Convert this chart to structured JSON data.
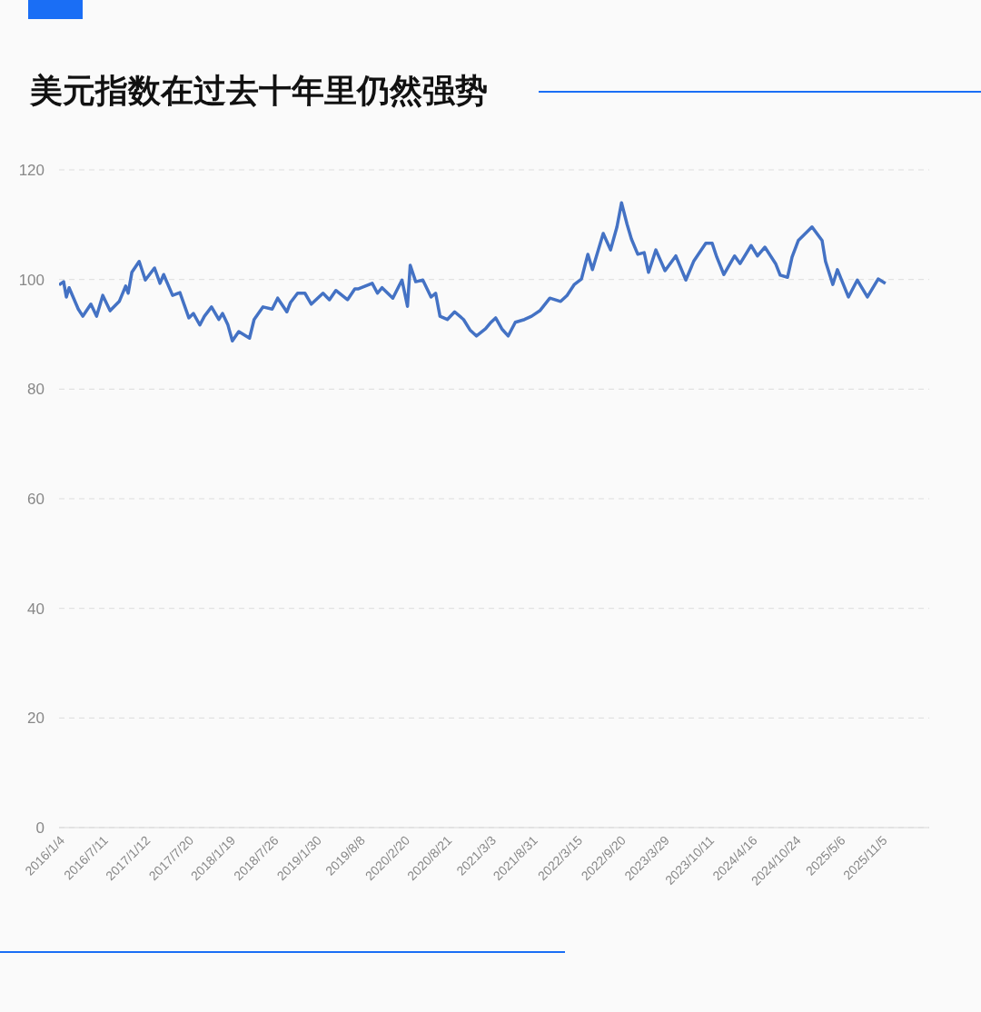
{
  "chart_data": {
    "type": "line",
    "title": "美元指数在过去十年里仍然强势",
    "x": [
      "2016-01-04",
      "2016-01-24",
      "2016-02-05",
      "2016-02-17",
      "2016-03-28",
      "2016-04-17",
      "2016-05-22",
      "2016-06-16",
      "2016-07-13",
      "2016-08-14",
      "2016-09-23",
      "2016-10-21",
      "2016-11-01",
      "2016-11-17",
      "2016-12-19",
      "2017-01-15",
      "2017-02-24",
      "2017-03-20",
      "2017-04-05",
      "2017-05-14",
      "2017-06-15",
      "2017-07-24",
      "2017-08-13",
      "2017-09-10",
      "2017-09-30",
      "2017-10-31",
      "2017-12-02",
      "2017-12-18",
      "2018-01-10",
      "2018-01-30",
      "2018-02-27",
      "2018-04-15",
      "2018-05-05",
      "2018-06-13",
      "2018-07-23",
      "2018-08-16",
      "2018-09-25",
      "2018-10-11",
      "2018-11-11",
      "2018-12-13",
      "2019-01-10",
      "2019-03-02",
      "2019-03-30",
      "2019-04-27",
      "2019-06-17",
      "2019-07-19",
      "2019-08-04",
      "2019-10-03",
      "2019-10-26",
      "2019-11-15",
      "2020-01-01",
      "2020-02-10",
      "2020-03-05",
      "2020-03-17",
      "2020-04-10",
      "2020-05-11",
      "2020-06-16",
      "2020-07-06",
      "2020-07-25",
      "2020-08-26",
      "2020-09-27",
      "2020-11-05",
      "2020-12-03",
      "2020-12-31",
      "2021-02-09",
      "2021-03-05",
      "2021-03-25",
      "2021-04-21",
      "2021-05-19",
      "2021-06-19",
      "2021-07-29",
      "2021-08-29",
      "2021-10-04",
      "2021-11-17",
      "2022-01-03",
      "2022-01-31",
      "2022-03-04",
      "2022-04-04",
      "2022-05-02",
      "2022-05-22",
      "2022-07-08",
      "2022-08-09",
      "2022-09-06",
      "2022-09-26",
      "2022-10-20",
      "2022-11-08",
      "2022-12-06",
      "2023-01-03",
      "2023-01-22",
      "2023-02-23",
      "2023-04-04",
      "2023-05-21",
      "2023-07-04",
      "2023-08-08",
      "2023-09-29",
      "2023-10-27",
      "2023-11-16",
      "2023-12-17",
      "2024-02-02",
      "2024-02-26",
      "2024-04-14",
      "2024-05-12",
      "2024-06-13",
      "2024-07-30",
      "2024-08-19",
      "2024-09-20",
      "2024-10-10",
      "2024-11-06",
      "2025-01-05",
      "2025-02-18",
      "2025-03-05",
      "2025-04-06",
      "2025-04-26",
      "2025-06-13",
      "2025-07-22",
      "2025-09-04",
      "2025-10-21",
      "2025-11-22"
    ],
    "series": [
      {
        "color": "#4472c4",
        "values": [
          99.0,
          99.6,
          96.8,
          98.5,
          94.6,
          93.3,
          95.5,
          93.3,
          97.1,
          94.3,
          96.0,
          98.8,
          97.5,
          101.3,
          103.3,
          99.9,
          102.1,
          99.3,
          100.9,
          97.1,
          97.6,
          93.0,
          93.8,
          91.7,
          93.3,
          95.0,
          92.7,
          93.8,
          91.8,
          88.8,
          90.5,
          89.3,
          92.7,
          95.0,
          94.6,
          96.6,
          94.1,
          95.8,
          97.5,
          97.5,
          95.5,
          97.5,
          96.3,
          98.0,
          96.3,
          98.3,
          98.3,
          99.3,
          97.5,
          98.5,
          96.6,
          99.9,
          95.1,
          102.6,
          99.6,
          99.9,
          96.8,
          97.5,
          93.3,
          92.7,
          94.1,
          92.7,
          90.8,
          89.7,
          91.0,
          92.2,
          93.0,
          91.0,
          89.7,
          92.2,
          92.7,
          93.3,
          94.3,
          96.6,
          96.0,
          97.1,
          99.1,
          100.1,
          104.6,
          101.8,
          108.4,
          105.4,
          109.6,
          114.0,
          110.1,
          107.4,
          104.6,
          104.9,
          101.3,
          105.4,
          101.6,
          104.3,
          99.9,
          103.4,
          106.6,
          106.6,
          104.1,
          100.9,
          104.3,
          102.9,
          106.2,
          104.3,
          105.9,
          102.9,
          100.8,
          100.4,
          104.1,
          107.1,
          109.6,
          107.1,
          103.3,
          99.1,
          101.8,
          96.8,
          99.9,
          96.8,
          100.1,
          99.3
        ]
      }
    ],
    "xlim": [
      "2016-01-04",
      "2026-06-01"
    ],
    "xticks": [
      {
        "value": "2016-01-04",
        "label": "2016/1/4"
      },
      {
        "value": "2016-07-11",
        "label": "2016/7/11"
      },
      {
        "value": "2017-01-12",
        "label": "2017/1/12"
      },
      {
        "value": "2017-07-20",
        "label": "2017/7/20"
      },
      {
        "value": "2018-01-19",
        "label": "2018/1/19"
      },
      {
        "value": "2018-07-26",
        "label": "2018/7/26"
      },
      {
        "value": "2019-01-30",
        "label": "2019/1/30"
      },
      {
        "value": "2019-08-08",
        "label": "2019/8/8"
      },
      {
        "value": "2020-02-20",
        "label": "2020/2/20"
      },
      {
        "value": "2020-08-21",
        "label": "2020/8/21"
      },
      {
        "value": "2021-03-03",
        "label": "2021/3/3"
      },
      {
        "value": "2021-08-31",
        "label": "2021/8/31"
      },
      {
        "value": "2022-03-15",
        "label": "2022/3/15"
      },
      {
        "value": "2022-09-20",
        "label": "2022/9/20"
      },
      {
        "value": "2023-03-29",
        "label": "2023/3/29"
      },
      {
        "value": "2023-10-11",
        "label": "2023/10/11"
      },
      {
        "value": "2024-04-16",
        "label": "2024/4/16"
      },
      {
        "value": "2024-10-24",
        "label": "2024/10/24"
      },
      {
        "value": "2025-05-06",
        "label": "2025/5/6"
      },
      {
        "value": "2025-11-05",
        "label": "2025/11/5"
      }
    ],
    "ylim": [
      0,
      120
    ],
    "yticks": [
      0,
      20,
      40,
      60,
      80,
      100,
      120
    ],
    "grid": "y",
    "marker": "none"
  }
}
